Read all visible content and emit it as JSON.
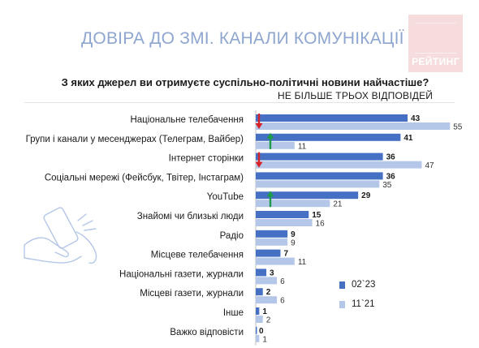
{
  "header": {
    "title": "ДОВІРА ДО ЗМІ. КАНАЛИ КОМУНІКАЦІЇ",
    "logo_text": "РЕЙТИНГ"
  },
  "question": "З яких джерел ви отримуєте суспільно-політичні новини найчастіше?",
  "note": "НЕ БІЛЬШЕ ТРЬОХ ВІДПОВІДЕЙ",
  "colors": {
    "series_a": "#4570c4",
    "series_b": "#b5c7e8",
    "arrow_down": "#d9232a",
    "arrow_up": "#1f9a4b",
    "title": "#8ea6cf",
    "logo_bg": "#f6dcdc"
  },
  "chart_data": {
    "type": "bar",
    "orientation": "horizontal",
    "categories": [
      "Національне телебачення",
      "Групи і канали у месенджерах (Телеграм, Вайбер)",
      "Інтернет сторінки",
      "Соціальні мережі (Фейсбук, Твітер, Інстаграм)",
      "YouTube",
      "Знайомі чи близькі люди",
      "Радіо",
      "Місцеве телебачення",
      "Національні газети, журнали",
      "Місцеві газети, журнали",
      "Інше",
      "Важко відповісти"
    ],
    "series": [
      {
        "name": "02`23",
        "values": [
          43,
          41,
          36,
          36,
          29,
          15,
          9,
          7,
          3,
          2,
          1,
          0
        ]
      },
      {
        "name": "11`21",
        "values": [
          55,
          11,
          47,
          35,
          21,
          16,
          9,
          11,
          6,
          6,
          2,
          1
        ]
      }
    ],
    "markers": [
      {
        "category": "Національне телебачення",
        "direction": "down"
      },
      {
        "category": "Групи і канали у месенджерах (Телеграм, Вайбер)",
        "direction": "up"
      },
      {
        "category": "Інтернет сторінки",
        "direction": "down"
      },
      {
        "category": "YouTube",
        "direction": "up"
      }
    ],
    "xlim": [
      0,
      60
    ],
    "legend_position": "bottom-right",
    "grid": false
  }
}
